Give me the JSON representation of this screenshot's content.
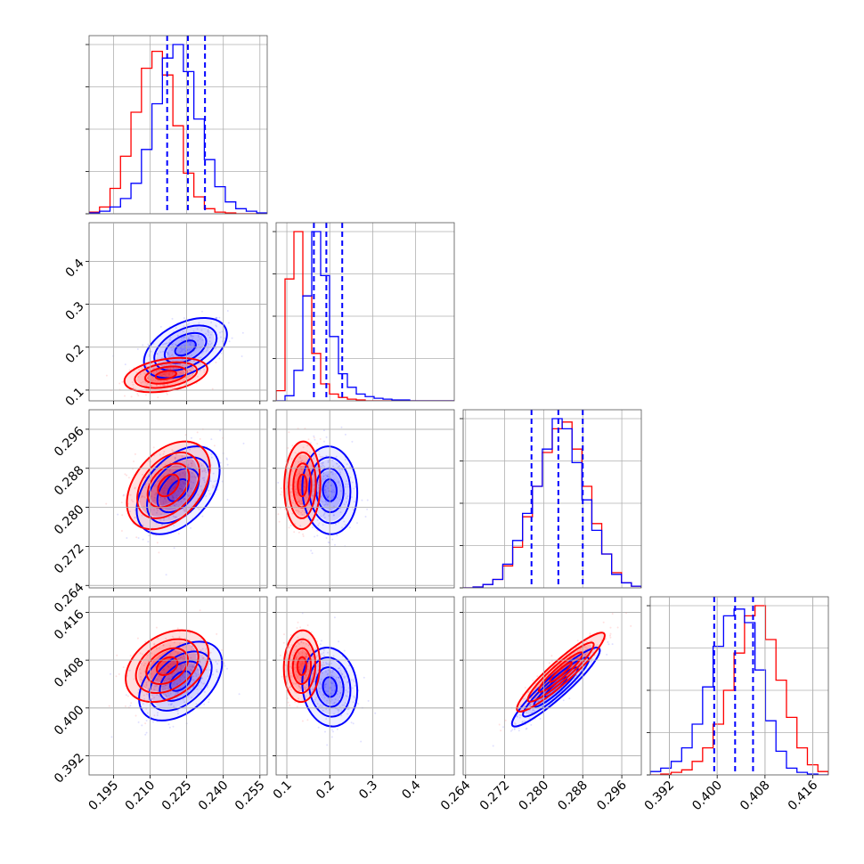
{
  "chart_data": {
    "type": "corner",
    "colors": {
      "series_a": "#0000ff",
      "series_b": "#ff0000"
    },
    "grid": true,
    "parameters": [
      {
        "ticks": [
          "0.195",
          "0.210",
          "0.225",
          "0.240",
          "0.255"
        ],
        "tick_values": [
          0.195,
          0.21,
          0.225,
          0.24,
          0.255
        ],
        "range": [
          0.185,
          0.258
        ]
      },
      {
        "ticks": [
          "0.1",
          "0.2",
          "0.3",
          "0.4"
        ],
        "tick_values": [
          0.1,
          0.2,
          0.3,
          0.4
        ],
        "range": [
          0.075,
          0.49
        ]
      },
      {
        "ticks": [
          "0.264",
          "0.272",
          "0.280",
          "0.288",
          "0.296"
        ],
        "tick_values": [
          0.264,
          0.272,
          0.28,
          0.288,
          0.296
        ],
        "range": [
          0.2635,
          0.3
        ]
      },
      {
        "ticks": [
          "0.392",
          "0.400",
          "0.408",
          "0.416"
        ],
        "tick_values": [
          0.392,
          0.4,
          0.408,
          0.416
        ],
        "range": [
          0.3888,
          0.4186
        ]
      }
    ],
    "histograms": [
      {
        "edges_range": [
          0.185,
          0.258
        ],
        "series_a": [
          0.5,
          1.5,
          4,
          9,
          18,
          38,
          65,
          92,
          100,
          84,
          56,
          32,
          16,
          7,
          3,
          1.5,
          0.5
        ],
        "series_b": [
          1,
          4,
          15,
          34,
          60,
          86,
          96,
          82,
          52,
          24,
          10,
          3,
          1,
          0.5,
          0,
          0,
          0
        ],
        "quantiles_a": [
          0.217,
          0.2255,
          0.2325
        ]
      },
      {
        "edges_range": [
          0.075,
          0.49
        ],
        "series_a": [
          0,
          3,
          18,
          62,
          100,
          74,
          38,
          16,
          8,
          4,
          2.5,
          1.5,
          1,
          0.5,
          0.5,
          0,
          0,
          0,
          0,
          0
        ],
        "series_b": [
          6,
          72,
          100,
          62,
          28,
          10,
          4,
          2,
          1,
          0.5,
          0,
          0,
          0,
          0,
          0,
          0,
          0,
          0,
          0,
          0
        ],
        "quantiles_a": [
          0.163,
          0.192,
          0.229
        ]
      },
      {
        "edges_range": [
          0.2635,
          0.3
        ],
        "series_a": [
          0,
          0.5,
          2,
          5,
          14,
          28,
          44,
          60,
          82,
          100,
          94,
          74,
          52,
          34,
          20,
          8,
          3,
          1
        ],
        "series_b": [
          0,
          0.5,
          2,
          5,
          13,
          24,
          42,
          60,
          80,
          94,
          98,
          82,
          60,
          38,
          20,
          9,
          3,
          1
        ],
        "quantiles_a": [
          0.2775,
          0.283,
          0.288
        ]
      },
      {
        "edges_range": [
          0.3888,
          0.4186
        ],
        "series_a": [
          2,
          4,
          8,
          16,
          30,
          52,
          76,
          94,
          98,
          90,
          62,
          32,
          14,
          4,
          1.5,
          0.5,
          0
        ],
        "series_b": [
          0,
          0.5,
          1.5,
          3,
          8,
          16,
          30,
          50,
          72,
          94,
          100,
          80,
          56,
          34,
          16,
          6,
          2
        ],
        "quantiles_a": [
          0.3995,
          0.403,
          0.406
        ]
      }
    ],
    "pairs": [
      {
        "row": 1,
        "col": 0,
        "a": {
          "mean": [
            0.2245,
            0.198
          ],
          "sd": [
            0.0085,
            0.035
          ],
          "rho": 0.45
        },
        "b": {
          "mean": [
            0.2165,
            0.135
          ],
          "sd": [
            0.0085,
            0.02
          ],
          "rho": 0.35
        }
      },
      {
        "row": 2,
        "col": 0,
        "a": {
          "mean": [
            0.2215,
            0.2835
          ],
          "sd": [
            0.0085,
            0.0045
          ],
          "rho": 0.45
        },
        "b": {
          "mean": [
            0.2175,
            0.2845
          ],
          "sd": [
            0.0085,
            0.0045
          ],
          "rho": 0.4
        }
      },
      {
        "row": 2,
        "col": 1,
        "a": {
          "mean": [
            0.2,
            0.2835
          ],
          "sd": [
            0.032,
            0.0045
          ],
          "rho": -0.05
        },
        "b": {
          "mean": [
            0.136,
            0.2845
          ],
          "sd": [
            0.021,
            0.0045
          ],
          "rho": 0.05
        }
      },
      {
        "row": 3,
        "col": 0,
        "a": {
          "mean": [
            0.2225,
            0.4045
          ],
          "sd": [
            0.0085,
            0.0033
          ],
          "rho": 0.45
        },
        "b": {
          "mean": [
            0.217,
            0.407
          ],
          "sd": [
            0.0085,
            0.003
          ],
          "rho": 0.35
        }
      },
      {
        "row": 3,
        "col": 1,
        "a": {
          "mean": [
            0.2,
            0.4035
          ],
          "sd": [
            0.032,
            0.0033
          ],
          "rho": -0.1
        },
        "b": {
          "mean": [
            0.135,
            0.407
          ],
          "sd": [
            0.021,
            0.003
          ],
          "rho": 0.05
        }
      },
      {
        "row": 3,
        "col": 2,
        "a": {
          "mean": [
            0.2825,
            0.4035
          ],
          "sd": [
            0.0045,
            0.0033
          ],
          "rho": 0.93
        },
        "b": {
          "mean": [
            0.2835,
            0.406
          ],
          "sd": [
            0.0045,
            0.0033
          ],
          "rho": 0.93
        }
      }
    ]
  }
}
